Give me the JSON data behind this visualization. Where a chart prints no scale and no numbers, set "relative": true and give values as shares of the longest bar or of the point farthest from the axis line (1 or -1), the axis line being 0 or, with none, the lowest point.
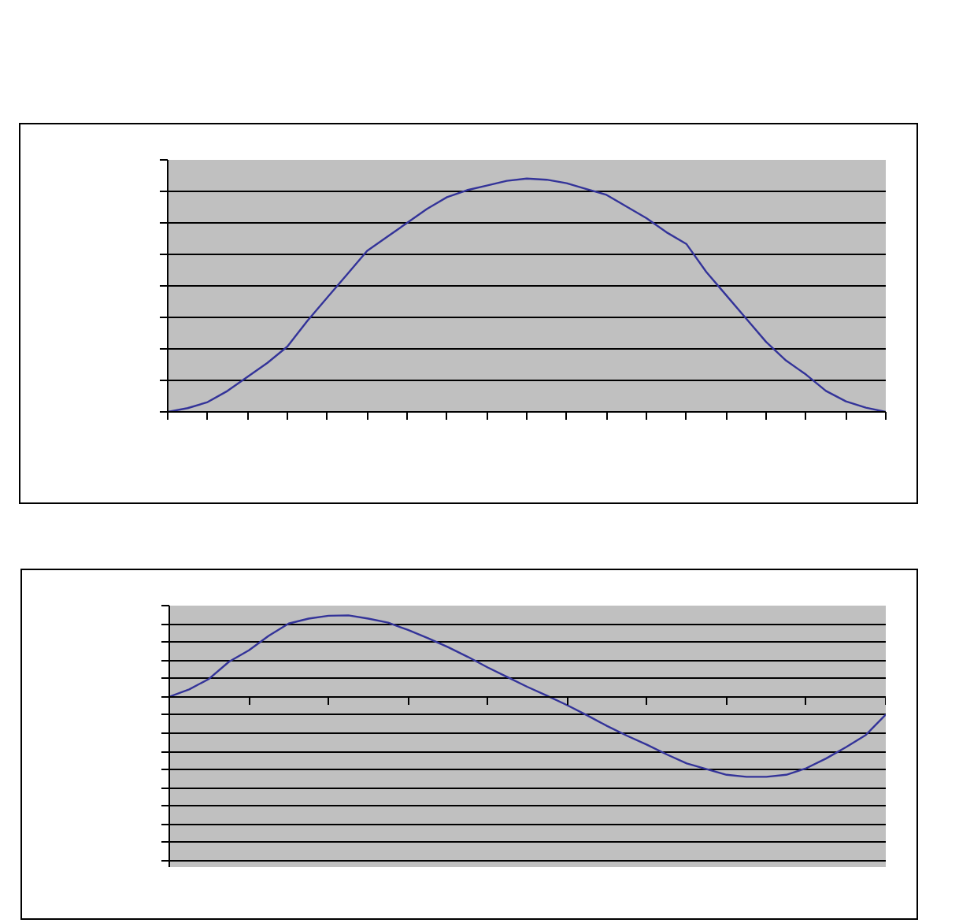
{
  "chart_data": [
    {
      "type": "line",
      "relative": true,
      "grid": "y",
      "tick_labels": false,
      "marker": "none",
      "line_style": "solid",
      "categories": [
        null,
        null,
        null,
        null,
        null,
        null,
        null,
        null,
        null,
        null,
        null,
        null,
        null,
        null,
        null,
        null,
        null,
        null,
        null,
        null,
        null,
        null,
        null,
        null,
        null,
        null,
        null,
        null,
        null,
        null,
        null,
        null,
        null,
        null,
        null,
        null,
        null
      ],
      "series": [
        {
          "color": "#333399",
          "values": [
            0,
            0.016,
            0.042,
            0.09,
            0.15,
            0.21,
            0.28,
            0.39,
            0.49,
            0.59,
            0.69,
            0.75,
            0.81,
            0.87,
            0.92,
            0.95,
            0.97,
            0.99,
            1.0,
            0.995,
            0.98,
            0.955,
            0.93,
            0.88,
            0.83,
            0.77,
            0.72,
            0.6,
            0.5,
            0.4,
            0.3,
            0.22,
            0.16,
            0.09,
            0.045,
            0.018,
            0
          ]
        }
      ]
    },
    {
      "type": "line",
      "relative": true,
      "grid": "y",
      "tick_labels": false,
      "marker": "none",
      "line_style": "solid",
      "categories": [
        null,
        null,
        null,
        null,
        null,
        null,
        null,
        null,
        null,
        null,
        null,
        null,
        null,
        null,
        null,
        null,
        null,
        null,
        null,
        null,
        null,
        null,
        null,
        null,
        null,
        null,
        null,
        null,
        null,
        null,
        null,
        null,
        null,
        null,
        null,
        null,
        null
      ],
      "series": [
        {
          "color": "#333399",
          "values": [
            0,
            0.09,
            0.22,
            0.43,
            0.57,
            0.75,
            0.9,
            0.96,
            0.995,
            1.0,
            0.96,
            0.91,
            0.82,
            0.72,
            0.61,
            0.49,
            0.36,
            0.24,
            0.12,
            0.01,
            -0.105,
            -0.23,
            -0.36,
            -0.48,
            -0.59,
            -0.71,
            -0.82,
            -0.89,
            -0.96,
            -0.985,
            -0.985,
            -0.96,
            -0.88,
            -0.76,
            -0.62,
            -0.47,
            -0.22
          ]
        }
      ]
    }
  ]
}
